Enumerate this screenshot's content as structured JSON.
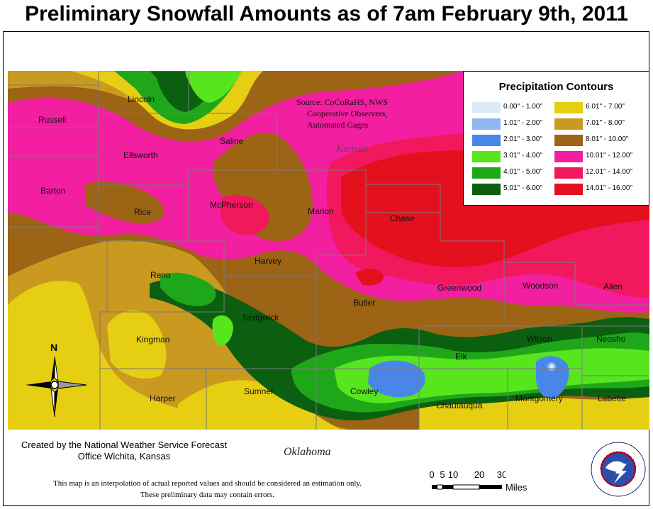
{
  "title": "Preliminary Snowfall Amounts as of 7am February 9th, 2011",
  "source_note": {
    "line1": "Source: CoCoRaHS, NWS",
    "line2": "Cooperative Observers,",
    "line3": "Automated Gages"
  },
  "state_label": "Kansas",
  "counties": {
    "lincoln": "Lincoln",
    "russell": "Russell",
    "saline": "Saline",
    "ellsworth": "Ellsworth",
    "barton": "Barton",
    "rice": "Rice",
    "mcpherson": "McPherson",
    "marion": "Marion",
    "chase": "Chase",
    "harvey": "Harvey",
    "reno": "Reno",
    "sedgwick": "Sedgwick",
    "butler": "Butler",
    "greenwood": "Greenwood",
    "woodson": "Woodson",
    "allen": "Allen",
    "kingman": "Kingman",
    "elk": "Elk",
    "wilson": "Wilson",
    "neosho": "Neosho",
    "harper": "Harper",
    "sumner": "Sumner",
    "cowley": "Cowley",
    "chautauqua": "Chautauqua",
    "montgomery": "Montgomery",
    "labette": "Labette"
  },
  "legend": {
    "title": "Precipitation Contours",
    "items": [
      {
        "label": "0.00\" - 1.00\"",
        "color": "#dceaf8"
      },
      {
        "label": "1.01\" - 2.00\"",
        "color": "#8fb6ef"
      },
      {
        "label": "2.01\" - 3.00\"",
        "color": "#4a86e8"
      },
      {
        "label": "3.01\" - 4.00\"",
        "color": "#57e51d"
      },
      {
        "label": "4.01\" - 5.00\"",
        "color": "#1fa71a"
      },
      {
        "label": "5.01\" - 6.00\"",
        "color": "#0c5f10"
      },
      {
        "label": "6.01\" - 7.00\"",
        "color": "#e6cf12"
      },
      {
        "label": "7.01\" - 8.00\"",
        "color": "#c99a1f"
      },
      {
        "label": "8.01\" - 10.00\"",
        "color": "#9c6414"
      },
      {
        "label": "10.01\" - 12.00\"",
        "color": "#f21fa0"
      },
      {
        "label": "12.01\" - 14.00\"",
        "color": "#f2185e"
      },
      {
        "label": "14.01\" - 16.00\"",
        "color": "#e4101e"
      }
    ]
  },
  "credit": {
    "line1": "Created by the National Weather Service Forecast",
    "line2": "Office Wichita, Kansas"
  },
  "neighbor_label": "Oklahoma",
  "disclaimer": {
    "line1": "This map is an interpolation of actual reported values and should be considered an estimation only.",
    "line2": "These preliminary data may contain errors."
  },
  "scale": {
    "ticks": [
      "0",
      "5",
      "10",
      "20",
      "30"
    ],
    "units": "Miles"
  },
  "north_label": "N",
  "logo_text": "NATIONAL WEATHER SERVICE"
}
